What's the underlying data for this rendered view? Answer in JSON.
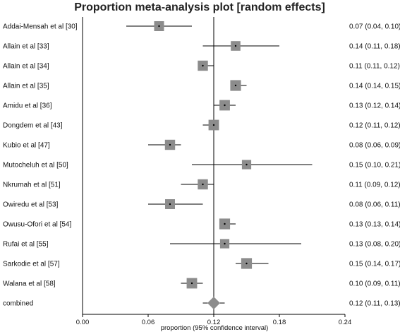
{
  "chart_data": {
    "type": "forest",
    "title": "Proportion meta-analysis plot [random effects]",
    "xlabel": "proportion (95% confidence interval)",
    "xlim": [
      0,
      0.24
    ],
    "xticks": [
      "0.00",
      "0.06",
      "0.12",
      "0.18",
      "0.24"
    ],
    "tick_values": [
      0,
      0.06,
      0.12,
      0.18,
      0.24
    ],
    "pooled_line": 0.12,
    "marker_color": "#8c8c8c",
    "studies": [
      {
        "name": "Addai-Mensah et al [30]",
        "estimate": 0.07,
        "lower": 0.04,
        "upper": 0.1,
        "ci_text": "0.07 (0.04, 0.10)",
        "weight": 1.0
      },
      {
        "name": "Allain et al [33]",
        "estimate": 0.14,
        "lower": 0.11,
        "upper": 0.18,
        "ci_text": "0.14 (0.11, 0.18)",
        "weight": 0.9
      },
      {
        "name": "Allain et al [34]",
        "estimate": 0.11,
        "lower": 0.11,
        "upper": 0.12,
        "ci_text": "0.11 (0.11, 0.12)",
        "weight": 1.1
      },
      {
        "name": "Allain et al [35]",
        "estimate": 0.14,
        "lower": 0.14,
        "upper": 0.15,
        "ci_text": "0.14 (0.14, 0.15)",
        "weight": 1.3
      },
      {
        "name": "Amidu et al [36]",
        "estimate": 0.13,
        "lower": 0.12,
        "upper": 0.14,
        "ci_text": "0.13 (0.12, 0.14)",
        "weight": 1.2
      },
      {
        "name": "Dongdem et al [43]",
        "estimate": 0.12,
        "lower": 0.11,
        "upper": 0.12,
        "ci_text": "0.12 (0.11, 0.12)",
        "weight": 1.2
      },
      {
        "name": "Kubio et al [47]",
        "estimate": 0.08,
        "lower": 0.06,
        "upper": 0.09,
        "ci_text": "0.08 (0.06, 0.09)",
        "weight": 1.1
      },
      {
        "name": "Mutocheluh et al [50]",
        "estimate": 0.15,
        "lower": 0.1,
        "upper": 0.21,
        "ci_text": "0.15 (0.10, 0.21)",
        "weight": 0.8
      },
      {
        "name": "Nkrumah et al [51]",
        "estimate": 0.11,
        "lower": 0.09,
        "upper": 0.12,
        "ci_text": "0.11 (0.09, 0.12)",
        "weight": 1.1
      },
      {
        "name": "Owiredu et al [53]",
        "estimate": 0.08,
        "lower": 0.06,
        "upper": 0.11,
        "ci_text": "0.08 (0.06, 0.11)",
        "weight": 1.0
      },
      {
        "name": "Owusu-Ofori et al [54]",
        "estimate": 0.13,
        "lower": 0.13,
        "upper": 0.14,
        "ci_text": "0.13 (0.13, 0.14)",
        "weight": 1.3
      },
      {
        "name": "Rufai et al [55]",
        "estimate": 0.13,
        "lower": 0.08,
        "upper": 0.2,
        "ci_text": "0.13 (0.08, 0.20)",
        "weight": 0.8
      },
      {
        "name": "Sarkodie et al [57]",
        "estimate": 0.15,
        "lower": 0.14,
        "upper": 0.17,
        "ci_text": "0.15 (0.14, 0.17)",
        "weight": 1.3
      },
      {
        "name": "Walana et al [58]",
        "estimate": 0.1,
        "lower": 0.09,
        "upper": 0.11,
        "ci_text": "0.10 (0.09, 0.11)",
        "weight": 1.2
      }
    ],
    "combined": {
      "name": "combined",
      "estimate": 0.12,
      "lower": 0.11,
      "upper": 0.13,
      "ci_text": "0.12 (0.11, 0.13)"
    }
  }
}
